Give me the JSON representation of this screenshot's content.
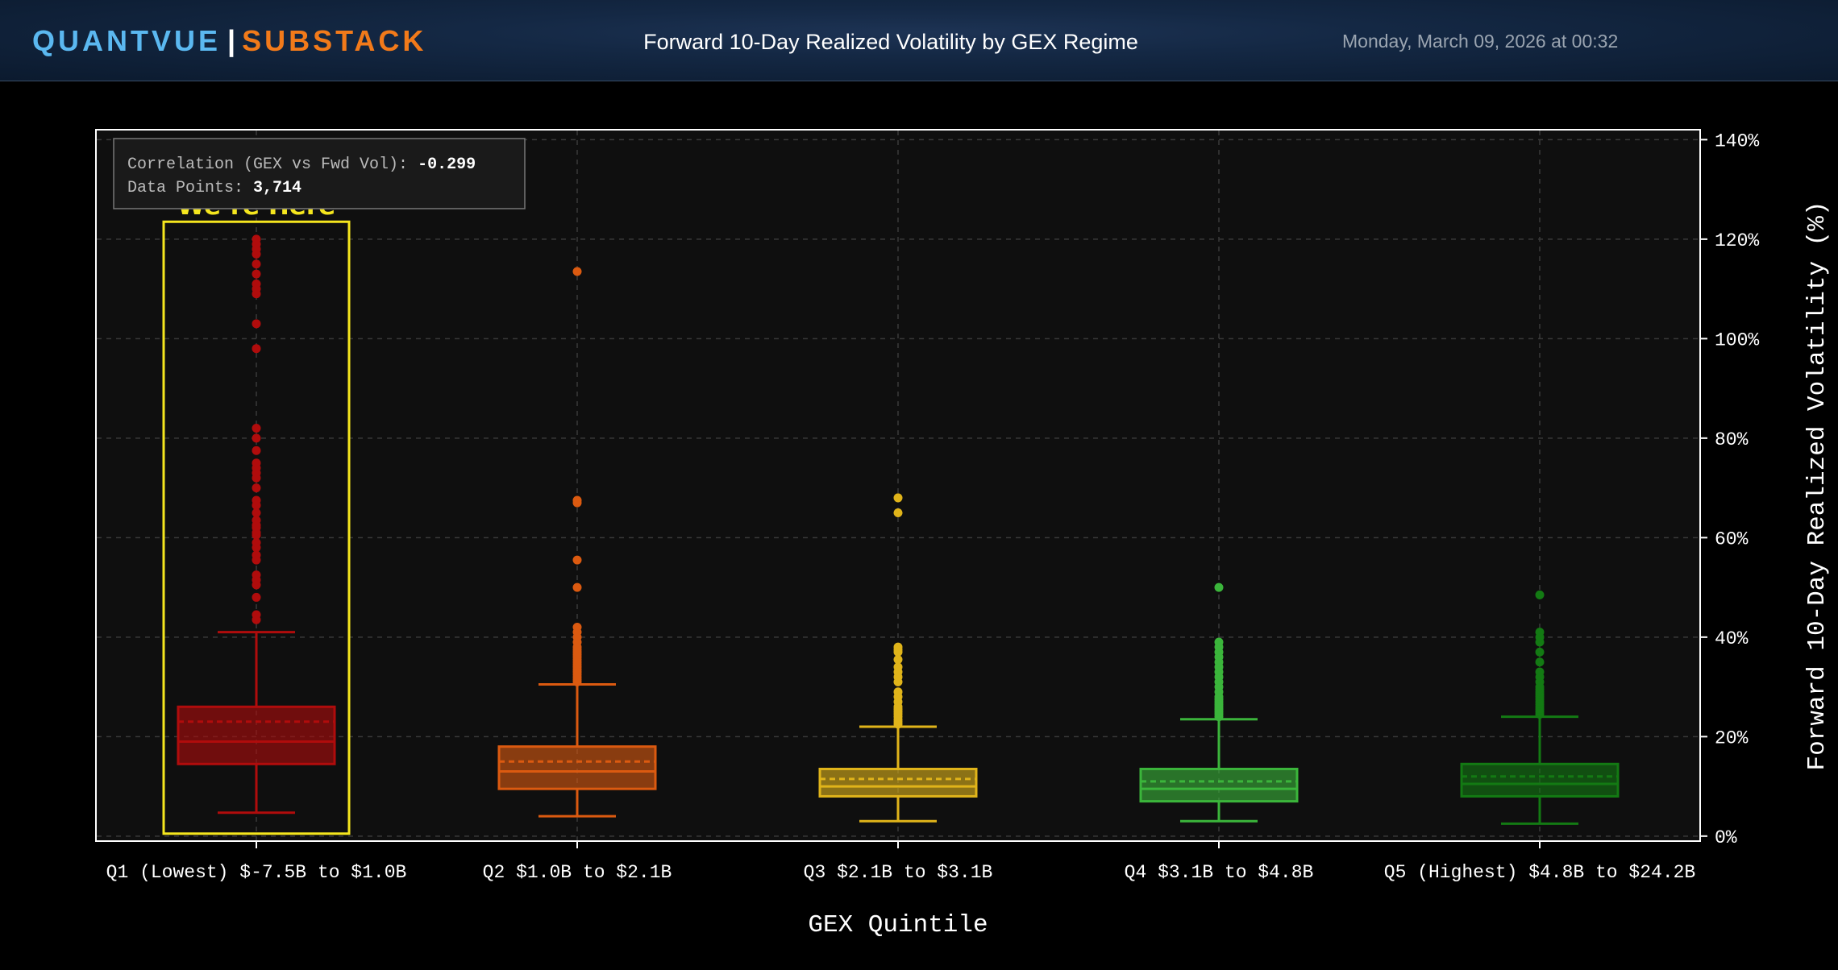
{
  "header": {
    "brand_primary": "QUANTVUE",
    "brand_separator": "|",
    "brand_secondary": "SUBSTACK",
    "title": "Forward 10-Day Realized Volatility by GEX Regime",
    "timestamp": "Monday, March 09, 2026 at 00:32"
  },
  "stats": {
    "correlation_label": "Correlation (GEX vs Fwd Vol):",
    "correlation_value": "-0.299",
    "points_label": "Data Points:",
    "points_value": "3,714"
  },
  "highlight_label": "We’re Here",
  "colors": {
    "background": "#000000",
    "plot_bg": "#0f0f0f",
    "highlight": "#f5e61e",
    "brand_primary": "#5bb8f0",
    "brand_secondary": "#f27a1a"
  },
  "chart_data": {
    "type": "box",
    "title": "Forward 10-Day Realized Volatility by GEX Regime",
    "xlabel": "GEX Quintile",
    "ylabel": "Forward 10-Day Realized Volatility (%)",
    "ylim": [
      -1,
      142
    ],
    "yticks": [
      0,
      20,
      40,
      60,
      80,
      100,
      120,
      140
    ],
    "ytick_labels": [
      "0%",
      "20%",
      "40%",
      "60%",
      "80%",
      "100%",
      "120%",
      "140%"
    ],
    "y_axis_side": "right",
    "grid": true,
    "highlighted_category": 0,
    "categories": [
      "Q1 (Lowest) $-7.5B to $1.0B",
      "Q2 $1.0B to $2.1B",
      "Q3 $2.1B to $3.1B",
      "Q4 $3.1B to $4.8B",
      "Q5 (Highest) $4.8B to $24.2B"
    ],
    "boxes": [
      {
        "color": "#b00c0c",
        "whisker_low": 4.7,
        "q1": 14.5,
        "median": 19,
        "mean": 23,
        "q3": 26,
        "whisker_high": 41,
        "outliers": [
          43.5,
          44.5,
          48,
          50.5,
          51.5,
          52.5,
          55.5,
          56.5,
          58,
          59,
          60.5,
          61,
          62,
          62.5,
          63.5,
          65,
          66.5,
          67.5,
          70,
          72,
          73,
          74,
          75,
          77.5,
          80,
          82,
          98,
          103,
          109,
          110,
          111,
          113,
          115,
          117,
          118,
          119,
          120
        ]
      },
      {
        "color": "#db5a10",
        "whisker_low": 4,
        "q1": 9.5,
        "median": 13,
        "mean": 15,
        "q3": 18,
        "whisker_high": 30.5,
        "outliers": [
          31,
          31.5,
          32,
          32.5,
          33,
          33.5,
          34,
          34.5,
          35,
          35.5,
          36,
          36.5,
          37,
          37.5,
          38,
          39,
          40,
          41,
          42,
          50,
          55.5,
          67,
          67.5,
          113.5
        ]
      },
      {
        "color": "#e0b41a",
        "whisker_low": 3,
        "q1": 8,
        "median": 10,
        "mean": 11.5,
        "q3": 13.5,
        "whisker_high": 22,
        "outliers": [
          22.5,
          23,
          23.5,
          24,
          24.5,
          25,
          25.5,
          26,
          27,
          28,
          29,
          31,
          32,
          33,
          34,
          35.5,
          37,
          37.5,
          38,
          65,
          68
        ]
      },
      {
        "color": "#3bb53b",
        "whisker_low": 3,
        "q1": 7,
        "median": 9.5,
        "mean": 11,
        "q3": 13.5,
        "whisker_high": 23.5,
        "outliers": [
          24,
          24.5,
          25,
          25.5,
          26,
          26.5,
          27,
          27.5,
          28,
          29,
          30,
          31,
          32,
          33,
          34,
          35,
          36,
          37,
          38,
          39,
          50
        ]
      },
      {
        "color": "#137a13",
        "whisker_low": 2.5,
        "q1": 8,
        "median": 10.5,
        "mean": 12,
        "q3": 14.5,
        "whisker_high": 24,
        "outliers": [
          24.5,
          25,
          25.5,
          26,
          26.5,
          27,
          27.5,
          28,
          28.5,
          29,
          29.5,
          30,
          31,
          32,
          33,
          35,
          37,
          39,
          40,
          41,
          48.5
        ]
      }
    ]
  }
}
